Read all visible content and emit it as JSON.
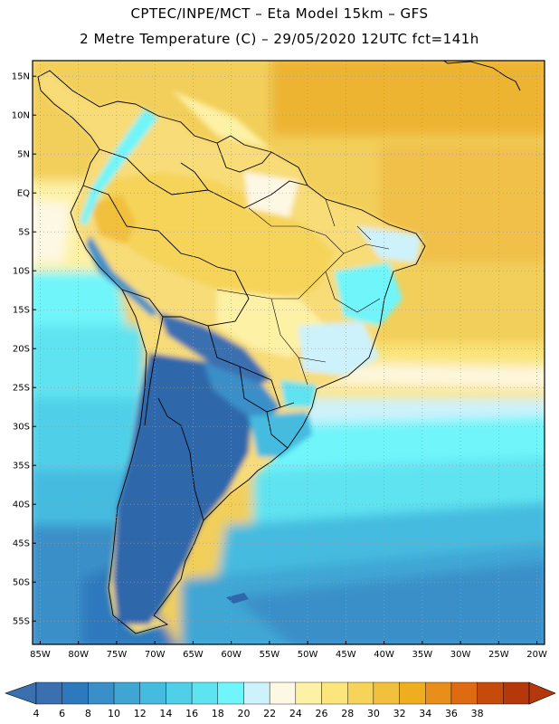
{
  "header": {
    "line1": "CPTEC/INPE/MCT –  Eta Model 15km – GFS",
    "line2": "2 Metre Temperature (C) – 29/05/2020 12UTC fct=141h"
  },
  "axes": {
    "lat_labels": [
      "15N",
      "10N",
      "5N",
      "EQ",
      "5S",
      "10S",
      "15S",
      "20S",
      "25S",
      "30S",
      "35S",
      "40S",
      "45S",
      "50S",
      "55S"
    ],
    "lat_values": [
      15,
      10,
      5,
      0,
      -5,
      -10,
      -15,
      -20,
      -25,
      -30,
      -35,
      -40,
      -45,
      -50,
      -55
    ],
    "lon_labels": [
      "85W",
      "80W",
      "75W",
      "70W",
      "65W",
      "60W",
      "55W",
      "50W",
      "45W",
      "40W",
      "35W",
      "30W",
      "25W",
      "20W"
    ],
    "lon_values": [
      -85,
      -80,
      -75,
      -70,
      -65,
      -60,
      -55,
      -50,
      -45,
      -40,
      -35,
      -30,
      -25,
      -20
    ],
    "lon_range": [
      -86,
      -19
    ],
    "lat_range": [
      -58,
      17
    ],
    "grid": true
  },
  "colorbar": {
    "labels": [
      "4",
      "6",
      "8",
      "10",
      "12",
      "14",
      "16",
      "18",
      "20",
      "22",
      "24",
      "26",
      "28",
      "30",
      "32",
      "34",
      "36",
      "38"
    ],
    "colors": [
      "#3a6fb0",
      "#2d79bd",
      "#3a8fc8",
      "#3fa6d4",
      "#45bbdf",
      "#4fd0e8",
      "#5ee3f0",
      "#6ff5fa",
      "#cdf2fb",
      "#fdf8e4",
      "#fdf1a5",
      "#fbe57c",
      "#f6d45a",
      "#f1c03d",
      "#eeae1f",
      "#e98e1a",
      "#de6a12",
      "#c54a0c",
      "#b5380a"
    ],
    "under_color": "#3a6fb0",
    "over_color": "#b5380a"
  }
}
